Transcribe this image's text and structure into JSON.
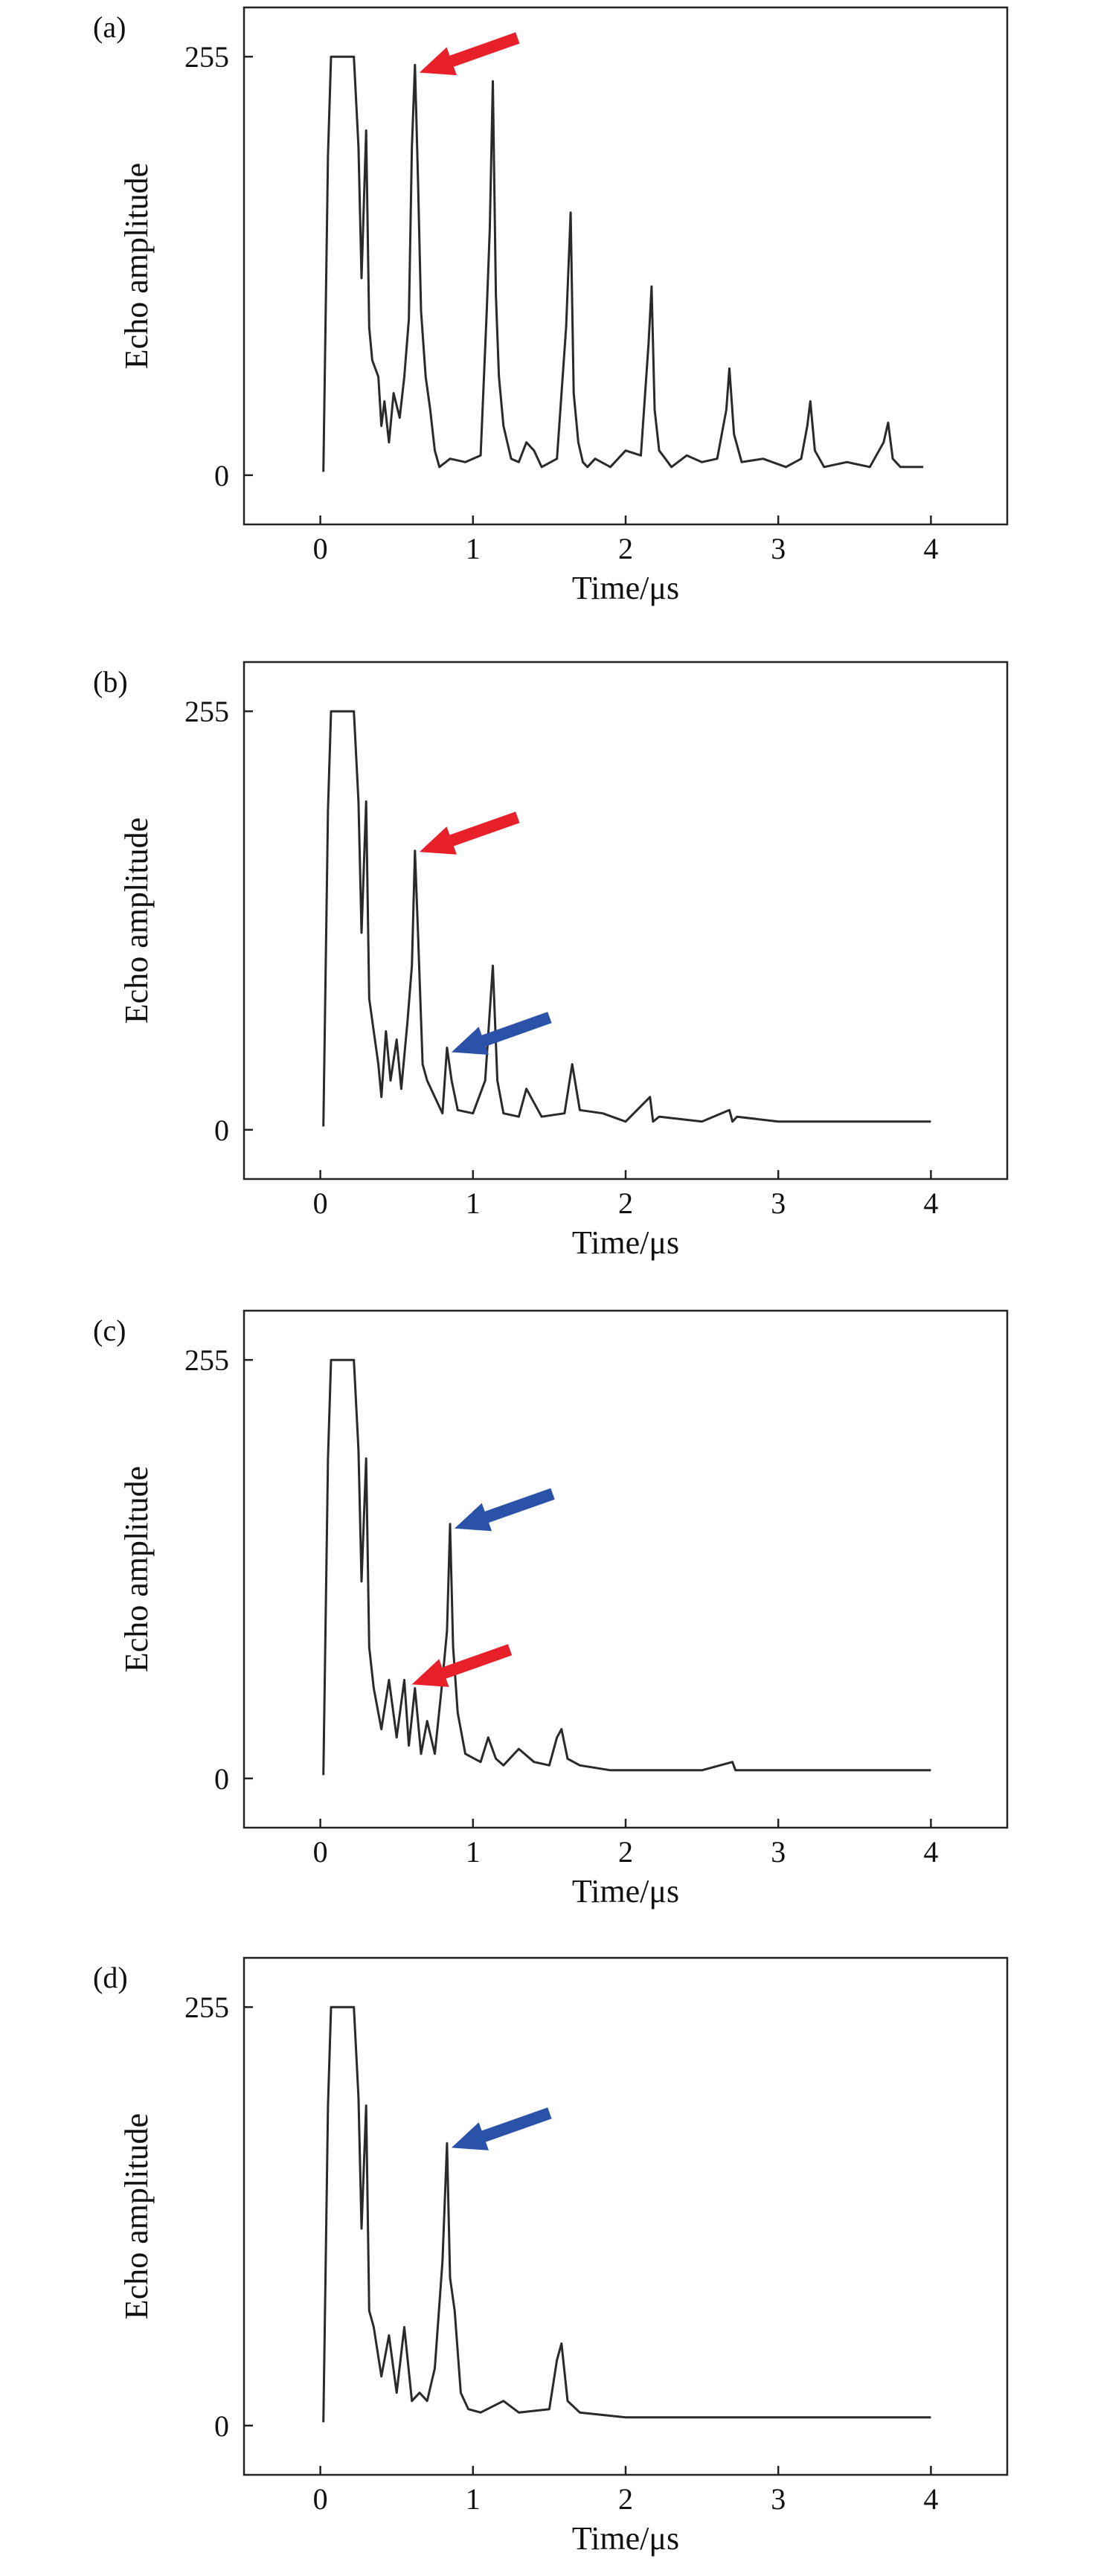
{
  "chart_data": [
    {
      "panel": "(a)",
      "type": "line",
      "xlabel": "Time/μs",
      "ylabel": "Echo amplitude",
      "xlim": [
        -0.5,
        4.5
      ],
      "ylim": [
        -30,
        285
      ],
      "xticks": [
        0,
        1,
        2,
        3,
        4
      ],
      "yticks": [
        0,
        255
      ],
      "arrows": [
        {
          "color": "#e8202a",
          "points_to": {
            "x": 0.62,
            "y": 248
          }
        }
      ],
      "series": [
        {
          "x": [
            0.02,
            0.05,
            0.07,
            0.22,
            0.25,
            0.27,
            0.3,
            0.32,
            0.34,
            0.38,
            0.4,
            0.42,
            0.45,
            0.48,
            0.52,
            0.55,
            0.58,
            0.6,
            0.62,
            0.64,
            0.66,
            0.69,
            0.72,
            0.75,
            0.78,
            0.85,
            0.95,
            1.05,
            1.09,
            1.11,
            1.13,
            1.15,
            1.17,
            1.2,
            1.25,
            1.3,
            1.35,
            1.4,
            1.45,
            1.55,
            1.61,
            1.64,
            1.66,
            1.69,
            1.72,
            1.75,
            1.8,
            1.9,
            2.0,
            2.1,
            2.15,
            2.17,
            2.19,
            2.22,
            2.26,
            2.3,
            2.4,
            2.5,
            2.6,
            2.66,
            2.68,
            2.71,
            2.76,
            2.9,
            3.05,
            3.15,
            3.19,
            3.21,
            3.24,
            3.3,
            3.45,
            3.6,
            3.69,
            3.72,
            3.75,
            3.8,
            3.95
          ],
          "y": [
            2,
            195,
            255,
            255,
            200,
            120,
            210,
            90,
            70,
            60,
            30,
            45,
            20,
            50,
            35,
            60,
            95,
            200,
            250,
            180,
            100,
            60,
            40,
            15,
            5,
            10,
            8,
            12,
            100,
            150,
            240,
            110,
            60,
            30,
            10,
            8,
            20,
            15,
            5,
            10,
            90,
            160,
            50,
            20,
            8,
            5,
            10,
            5,
            15,
            12,
            80,
            115,
            40,
            15,
            10,
            5,
            12,
            8,
            10,
            40,
            65,
            25,
            8,
            10,
            5,
            10,
            30,
            45,
            15,
            5,
            8,
            5,
            20,
            32,
            10,
            5,
            5
          ]
        }
      ]
    },
    {
      "panel": "(b)",
      "type": "line",
      "xlabel": "Time/μs",
      "ylabel": "Echo amplitude",
      "xlim": [
        -0.5,
        4.5
      ],
      "ylim": [
        -30,
        285
      ],
      "xticks": [
        0,
        1,
        2,
        3,
        4
      ],
      "yticks": [
        0,
        255
      ],
      "arrows": [
        {
          "color": "#e8202a",
          "points_to": {
            "x": 0.62,
            "y": 172
          }
        },
        {
          "color": "#2a52a8",
          "points_to": {
            "x": 0.83,
            "y": 50
          }
        }
      ],
      "series": [
        {
          "x": [
            0.02,
            0.05,
            0.07,
            0.22,
            0.25,
            0.27,
            0.3,
            0.32,
            0.35,
            0.38,
            0.4,
            0.43,
            0.46,
            0.5,
            0.53,
            0.57,
            0.6,
            0.62,
            0.64,
            0.67,
            0.7,
            0.75,
            0.8,
            0.83,
            0.86,
            0.9,
            1.0,
            1.08,
            1.13,
            1.16,
            1.2,
            1.3,
            1.35,
            1.45,
            1.6,
            1.65,
            1.7,
            1.85,
            2.0,
            2.16,
            2.18,
            2.22,
            2.5,
            2.68,
            2.7,
            2.73,
            3.0,
            3.5,
            4.0
          ],
          "y": [
            2,
            195,
            255,
            255,
            200,
            120,
            200,
            80,
            60,
            40,
            20,
            60,
            30,
            55,
            25,
            65,
            100,
            170,
            120,
            40,
            30,
            20,
            10,
            50,
            30,
            12,
            10,
            30,
            100,
            30,
            10,
            8,
            25,
            8,
            10,
            40,
            12,
            10,
            5,
            20,
            5,
            8,
            5,
            12,
            5,
            8,
            5,
            5,
            5
          ]
        }
      ]
    },
    {
      "panel": "(c)",
      "type": "line",
      "xlabel": "Time/μs",
      "ylabel": "Echo amplitude",
      "xlim": [
        -0.5,
        4.5
      ],
      "ylim": [
        -30,
        285
      ],
      "xticks": [
        0,
        1,
        2,
        3,
        4
      ],
      "yticks": [
        0,
        255
      ],
      "arrows": [
        {
          "color": "#2a52a8",
          "points_to": {
            "x": 0.85,
            "y": 155
          }
        },
        {
          "color": "#e8202a",
          "points_to": {
            "x": 0.57,
            "y": 60
          }
        }
      ],
      "series": [
        {
          "x": [
            0.02,
            0.05,
            0.07,
            0.22,
            0.25,
            0.27,
            0.3,
            0.32,
            0.35,
            0.4,
            0.45,
            0.5,
            0.55,
            0.58,
            0.62,
            0.66,
            0.7,
            0.75,
            0.8,
            0.83,
            0.85,
            0.87,
            0.9,
            0.95,
            1.05,
            1.1,
            1.15,
            1.2,
            1.3,
            1.4,
            1.5,
            1.55,
            1.58,
            1.62,
            1.7,
            1.9,
            2.1,
            2.5,
            2.7,
            2.72,
            2.75,
            3.0,
            3.5,
            4.0
          ],
          "y": [
            2,
            195,
            255,
            255,
            200,
            120,
            195,
            80,
            55,
            30,
            60,
            25,
            60,
            20,
            55,
            15,
            35,
            15,
            60,
            90,
            155,
            80,
            40,
            15,
            10,
            25,
            12,
            8,
            18,
            10,
            8,
            25,
            30,
            12,
            8,
            5,
            5,
            5,
            10,
            5,
            5,
            5,
            5,
            5
          ]
        }
      ]
    },
    {
      "panel": "(d)",
      "type": "line",
      "xlabel": "Time/μs",
      "ylabel": "Echo amplitude",
      "xlim": [
        -0.5,
        4.5
      ],
      "ylim": [
        -30,
        285
      ],
      "xticks": [
        0,
        1,
        2,
        3,
        4
      ],
      "yticks": [
        0,
        255
      ],
      "arrows": [
        {
          "color": "#2a52a8",
          "points_to": {
            "x": 0.83,
            "y": 172
          }
        }
      ],
      "series": [
        {
          "x": [
            0.02,
            0.05,
            0.07,
            0.22,
            0.25,
            0.27,
            0.3,
            0.32,
            0.35,
            0.4,
            0.45,
            0.5,
            0.55,
            0.6,
            0.65,
            0.7,
            0.75,
            0.8,
            0.83,
            0.85,
            0.88,
            0.92,
            0.97,
            1.05,
            1.2,
            1.3,
            1.5,
            1.55,
            1.58,
            1.62,
            1.7,
            2.0,
            2.5,
            3.0,
            3.5,
            4.0
          ],
          "y": [
            2,
            195,
            255,
            255,
            200,
            120,
            195,
            70,
            60,
            30,
            55,
            20,
            60,
            15,
            20,
            15,
            35,
            100,
            172,
            90,
            70,
            20,
            10,
            8,
            15,
            8,
            10,
            40,
            50,
            15,
            8,
            5,
            5,
            5,
            5,
            5
          ]
        }
      ]
    }
  ]
}
